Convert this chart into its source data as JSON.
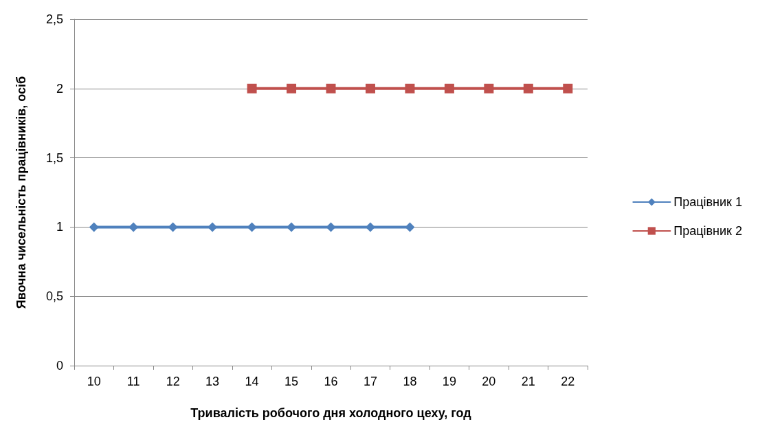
{
  "chart_data": {
    "type": "line",
    "xlabel": "Тривалість робочого дня холодного цеху, год",
    "ylabel": "Явочна чисельність працівників, осіб",
    "categories": [
      "10",
      "11",
      "12",
      "13",
      "14",
      "15",
      "16",
      "17",
      "18",
      "19",
      "20",
      "21",
      "22"
    ],
    "series": [
      {
        "name": "Працівник 1",
        "color": "#4f81bd",
        "marker": "diamond",
        "values": [
          1,
          1,
          1,
          1,
          1,
          1,
          1,
          1,
          1,
          null,
          null,
          null,
          null
        ]
      },
      {
        "name": "Працівник 2",
        "color": "#c0504d",
        "marker": "square",
        "values": [
          null,
          null,
          null,
          null,
          2,
          2,
          2,
          2,
          2,
          2,
          2,
          2,
          2
        ]
      }
    ],
    "ylim": [
      0,
      2.5
    ],
    "yticks": [
      0,
      {
        "value": 0.5,
        "label": "0,5"
      },
      1,
      {
        "value": 1.5,
        "label": "1,5"
      },
      2,
      {
        "value": 2.5,
        "label": "2,5"
      }
    ],
    "grid": "y",
    "legend": "right",
    "line_style": "solid"
  }
}
